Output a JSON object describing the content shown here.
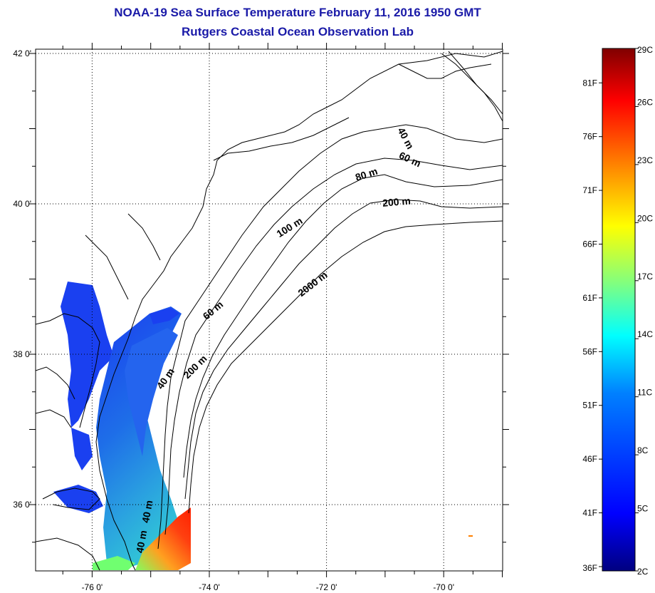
{
  "title": {
    "line1": "NOAA-19 Sea Surface Temperature February 11, 2016 1950 GMT",
    "line2": "Rutgers Coastal Ocean Observation Lab"
  },
  "map": {
    "lat_labels": [
      {
        "value": 42,
        "text": "42 0'"
      },
      {
        "value": 40,
        "text": "40 0'"
      },
      {
        "value": 38,
        "text": "38 0'"
      },
      {
        "value": 36,
        "text": "36 0'"
      }
    ],
    "lon_labels": [
      {
        "value": -76,
        "text": "-76 0'"
      },
      {
        "value": -74,
        "text": "-74 0'"
      },
      {
        "value": -72,
        "text": "-72 0'"
      },
      {
        "value": -70,
        "text": "-70 0'"
      }
    ],
    "lat_range": [
      35.0,
      42.0
    ],
    "lon_range": [
      -77.0,
      -69.0
    ],
    "grid": "dotted",
    "contour_labels": [
      {
        "text": "40 m",
        "lon": -70.7,
        "lat": 40.85,
        "angle": 62
      },
      {
        "text": "60 m",
        "lon": -70.6,
        "lat": 40.55,
        "angle": 25
      },
      {
        "text": "80 m",
        "lon": -71.3,
        "lat": 40.35,
        "angle": -18
      },
      {
        "text": "200 m",
        "lon": -70.8,
        "lat": 39.98,
        "angle": -5
      },
      {
        "text": "100 m",
        "lon": -72.6,
        "lat": 39.65,
        "angle": -32
      },
      {
        "text": "2000 m",
        "lon": -72.2,
        "lat": 38.9,
        "angle": -38
      },
      {
        "text": "60 m",
        "lon": -73.9,
        "lat": 38.55,
        "angle": -40
      },
      {
        "text": "200 m",
        "lon": -74.2,
        "lat": 37.8,
        "angle": -45
      },
      {
        "text": "40 m",
        "lon": -74.7,
        "lat": 37.65,
        "angle": -55
      },
      {
        "text": "40 m",
        "lon": -75.0,
        "lat": 35.9,
        "angle": -80
      },
      {
        "text": "40 m",
        "lon": -75.1,
        "lat": 35.5,
        "angle": -80
      }
    ]
  },
  "colorbar": {
    "colors": [
      "#000080",
      "#0000ff",
      "#0080ff",
      "#00ffff",
      "#80ff80",
      "#ffff00",
      "#ff8000",
      "#ff0000",
      "#800000"
    ],
    "celsius_labels": [
      {
        "value": 2,
        "text": "2C"
      },
      {
        "value": 5,
        "text": "5C"
      },
      {
        "value": 8,
        "text": "8C"
      },
      {
        "value": 11,
        "text": "11C"
      },
      {
        "value": 14,
        "text": "14C"
      },
      {
        "value": 17,
        "text": "17C"
      },
      {
        "value": 20,
        "text": "20C"
      },
      {
        "value": 23,
        "text": "23C"
      },
      {
        "value": 26,
        "text": "26C"
      },
      {
        "value": 29,
        "text": "29C"
      }
    ],
    "fahrenheit_labels": [
      {
        "value": 36,
        "text": "36F"
      },
      {
        "value": 41,
        "text": "41F"
      },
      {
        "value": 46,
        "text": "46F"
      },
      {
        "value": 51,
        "text": "51F"
      },
      {
        "value": 56,
        "text": "56F"
      },
      {
        "value": 61,
        "text": "61F"
      },
      {
        "value": 66,
        "text": "66F"
      },
      {
        "value": 71,
        "text": "71F"
      },
      {
        "value": 76,
        "text": "76F"
      },
      {
        "value": 81,
        "text": "81F"
      }
    ],
    "range_c": [
      2,
      29
    ]
  }
}
